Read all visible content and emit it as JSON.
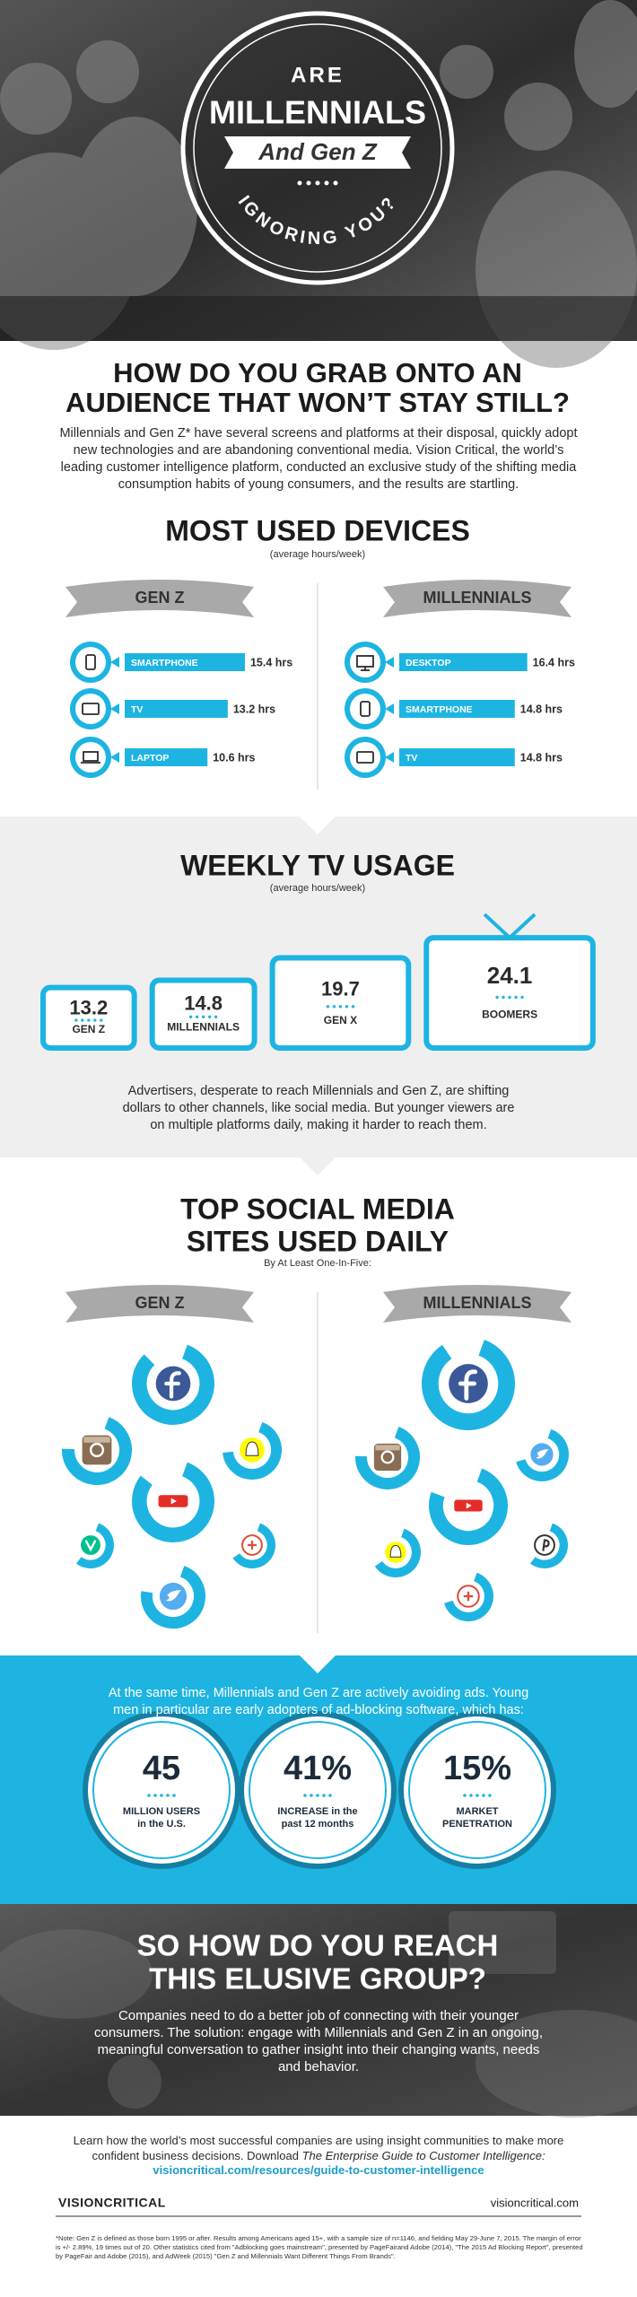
{
  "header": {
    "line1": "ARE",
    "line2": "MILLENNIALS",
    "line3": "And Gen Z",
    "line4": "IGNORING YOU?"
  },
  "intro": {
    "title_lines": [
      "HOW DO YOU GRAB ONTO AN",
      "AUDIENCE THAT WON’T STAY STILL?"
    ],
    "text": "Millennials and Gen Z* have several screens and platforms at their disposal, quickly adopt new technologies and are abandoning conventional media. Vision Critical, the world’s leading customer intelligence platform, conducted an exclusive study of the shifting media consumption habits of young consumers, and the results are startling."
  },
  "devices": {
    "title": "MOST USED DEVICES",
    "subtitle": "(average hours/week)",
    "groups": [
      {
        "name": "GEN Z",
        "items": [
          {
            "label": "SMARTPHONE",
            "value": 15.4,
            "value_label": "15.4 hrs"
          },
          {
            "label": "TV",
            "value": 13.2,
            "value_label": "13.2 hrs"
          },
          {
            "label": "LAPTOP",
            "value": 10.6,
            "value_label": "10.6 hrs"
          }
        ]
      },
      {
        "name": "MILLENNIALS",
        "items": [
          {
            "label": "DESKTOP",
            "value": 16.4,
            "value_label": "16.4 hrs"
          },
          {
            "label": "SMARTPHONE",
            "value": 14.8,
            "value_label": "14.8 hrs"
          },
          {
            "label": "TV",
            "value": 14.8,
            "value_label": "14.8 hrs"
          }
        ]
      }
    ]
  },
  "tv": {
    "title": "WEEKLY TV USAGE",
    "subtitle": "(average hours/week)",
    "items": [
      {
        "value": 13.2,
        "label": "GEN Z"
      },
      {
        "value": 14.8,
        "label": "MILLENNIALS"
      },
      {
        "value": 19.7,
        "label": "GEN X"
      },
      {
        "value": 24.1,
        "label": "BOOMERS"
      }
    ],
    "text": "Advertisers, desperate to reach Millennials and Gen Z, are shifting dollars to other channels, like social media. But younger viewers are on multiple platforms daily, making it harder to reach them."
  },
  "social": {
    "title_lines": [
      "TOP SOCIAL MEDIA",
      "SITES USED DAILY"
    ],
    "subtitle": "By At Least One-In-Five:",
    "groups": [
      {
        "name": "GEN Z",
        "values": [
          82,
          70,
          68,
          80,
          55,
          60,
          72
        ]
      },
      {
        "name": "MILLENNIALS",
        "values": [
          85,
          70,
          65,
          75,
          60,
          55,
          65
        ]
      }
    ]
  },
  "ads": {
    "text": "At the same time, Millennials and Gen Z are actively avoiding ads. Young men in particular are early adopters of ad-blocking software, which has:",
    "stats": [
      {
        "value": "45",
        "label_lines": [
          "MILLION USERS",
          "in the U.S."
        ]
      },
      {
        "value": "41%",
        "label_lines": [
          "INCREASE in the",
          "past 12 months"
        ]
      },
      {
        "value": "15%",
        "label_lines": [
          "MARKET",
          "PENETRATION"
        ]
      }
    ]
  },
  "reach": {
    "title_lines": [
      "SO HOW DO YOU REACH",
      "THIS ELUSIVE GROUP?"
    ],
    "text": "Companies need to do a better job of connecting with their younger consumers. The solution: engage with Millennials and Gen Z in an ongoing, meaningful conversation to gather insight into their changing wants, needs and behavior."
  },
  "footer": {
    "text": "Learn how the world’s most successful companies are using insight communities to make more confident business decisions. Download",
    "italic": "The Enterprise Guide to Customer Intelligence:",
    "link": "visioncritical.com/resources/guide-to-customer-intelligence",
    "brand": "VISIONCRITICAL",
    "site": "visioncritical.com",
    "note": "*Note: Gen Z is defined as those born 1995 or after. Results among Americans aged 15+, with a sample size of n=1146, and fielding May 29-June 7, 2015. The margin of error is +/- 2.89%, 19 times out of 20. Other statistics cited from \"Adblocking goes mainstream\", presented by PageFairand Adobe (2014), \"The 2015 Ad Blocking Report\", presented by PageFair and Adobe (2015), and AdWeek (2015) \"Gen Z and Millennials Want Different Things From Brands\"."
  }
}
